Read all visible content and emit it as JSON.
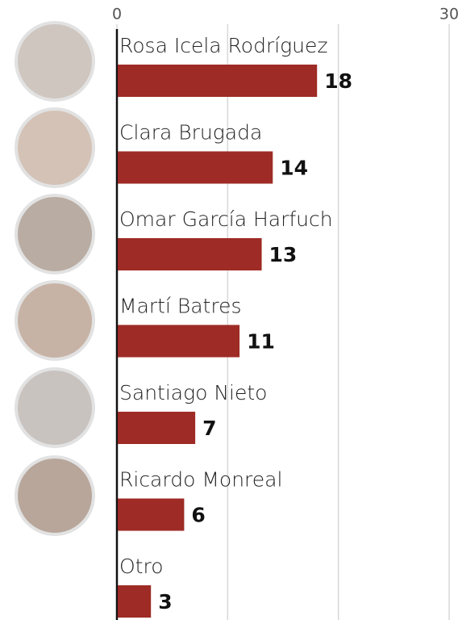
{
  "chart_data": {
    "type": "barh",
    "categories": [
      "Rosa Icela Rodríguez",
      "Clara Brugada",
      "Omar García Harfuch",
      "Martí Batres",
      "Santiago Nieto",
      "Ricardo Monreal",
      "Otro"
    ],
    "values": [
      18,
      14,
      13,
      11,
      7,
      6,
      3
    ],
    "color": "#9e2b25",
    "xlim": [
      0,
      30.8
    ],
    "xticks": [
      0,
      {
        "value": 10,
        "label": null
      },
      {
        "value": 20,
        "label": null
      },
      30
    ],
    "grid": true
  }
}
